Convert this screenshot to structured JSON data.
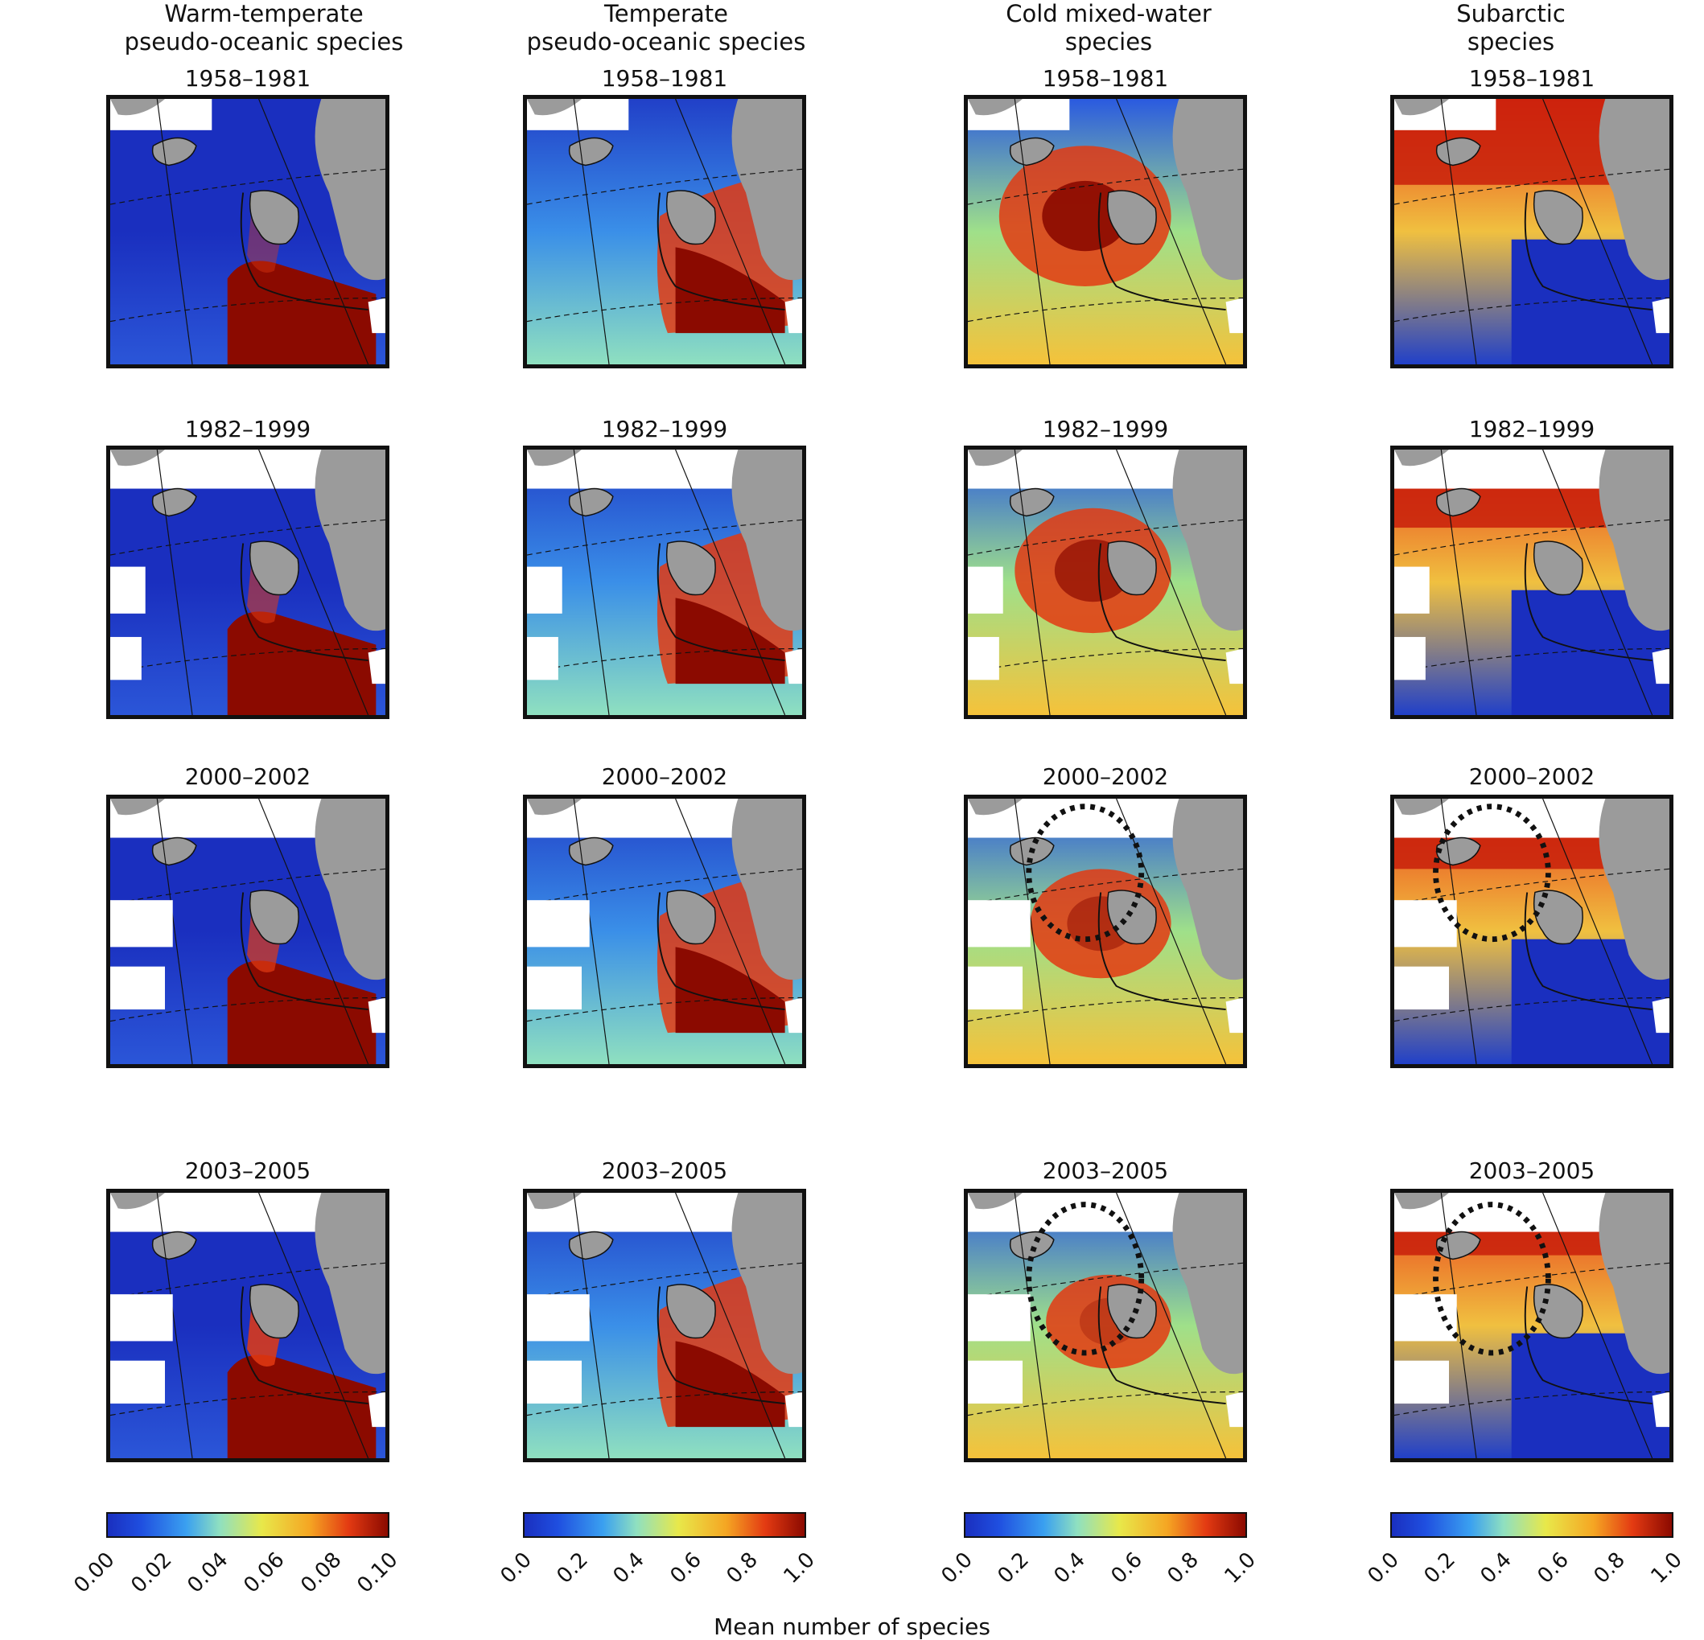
{
  "colors": {
    "low": "#1a2fbf",
    "mid": "#e8e84a",
    "high": "#8b0a00",
    "land": "#9b9b9b"
  },
  "columns": [
    {
      "head": [
        "Warm-temperate",
        "pseudo-oceanic species"
      ],
      "colorbar_ticks": [
        "0.00",
        "0.02",
        "0.04",
        "0.06",
        "0.08",
        "0.10"
      ],
      "mode": "warm"
    },
    {
      "head": [
        "Temperate",
        "pseudo-oceanic species"
      ],
      "colorbar_ticks": [
        "0.0",
        "0.2",
        "0.4",
        "0.6",
        "0.8",
        "1.0"
      ],
      "mode": "temperate"
    },
    {
      "head": [
        "Cold mixed-water",
        "species"
      ],
      "colorbar_ticks": [
        "0.0",
        "0.2",
        "0.4",
        "0.6",
        "0.8",
        "1.0"
      ],
      "mode": "cold"
    },
    {
      "head": [
        "Subarctic",
        "species"
      ],
      "colorbar_ticks": [
        "0.0",
        "0.2",
        "0.4",
        "0.6",
        "0.8",
        "1.0"
      ],
      "mode": "subarctic"
    }
  ],
  "periods": [
    "1958–1981",
    "1982–1999",
    "2000–2002",
    "2003–2005"
  ],
  "highlighted_maps": [
    [
      2,
      2
    ],
    [
      2,
      3
    ],
    [
      3,
      2
    ],
    [
      3,
      3
    ]
  ],
  "xlabel": "Mean number of species"
}
